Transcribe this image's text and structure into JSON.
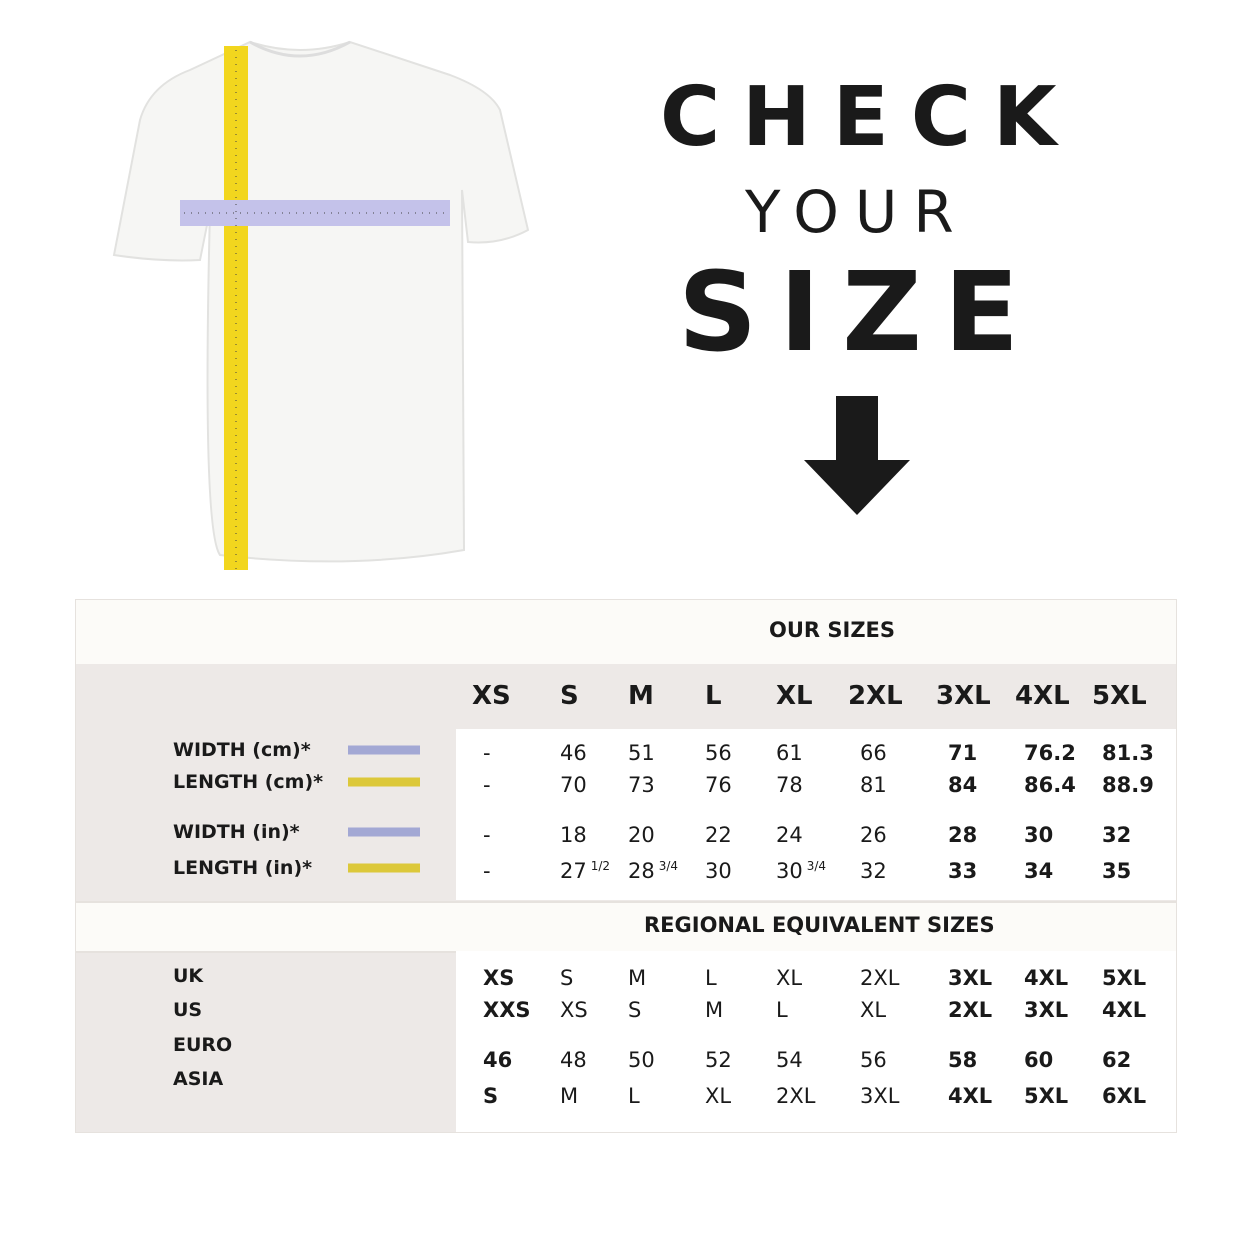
{
  "headline": {
    "line1": "CHECK",
    "line2": "YOUR",
    "line3": "SIZE"
  },
  "icons": {
    "shirt": "tshirt-with-measuring-tapes",
    "arrow": "arrow-down-icon"
  },
  "colors": {
    "width_swatch": "#a3a8d4",
    "length_swatch": "#dcc83a",
    "tape_yellow": "#f2d61e",
    "tape_lavender": "#c4c2ea"
  },
  "our_sizes": {
    "title": "OUR SIZES",
    "sizes": [
      "XS",
      "S",
      "M",
      "L",
      "XL",
      "2XL",
      "3XL",
      "4XL",
      "5XL"
    ],
    "rows": [
      {
        "label": "WIDTH (cm)*",
        "swatch": "width",
        "values": [
          {
            "v": "-"
          },
          {
            "v": "46"
          },
          {
            "v": "51"
          },
          {
            "v": "56"
          },
          {
            "v": "61"
          },
          {
            "v": "66"
          },
          {
            "v": "71"
          },
          {
            "v": "76.2"
          },
          {
            "v": "81.3"
          }
        ]
      },
      {
        "label": "LENGTH (cm)*",
        "swatch": "length",
        "values": [
          {
            "v": "-"
          },
          {
            "v": "70"
          },
          {
            "v": "73"
          },
          {
            "v": "76"
          },
          {
            "v": "78"
          },
          {
            "v": "81"
          },
          {
            "v": "84"
          },
          {
            "v": "86.4"
          },
          {
            "v": "88.9"
          }
        ]
      },
      {
        "label": "WIDTH (in)*",
        "swatch": "width",
        "values": [
          {
            "v": "-"
          },
          {
            "v": "18"
          },
          {
            "v": "20"
          },
          {
            "v": "22"
          },
          {
            "v": "24"
          },
          {
            "v": "26"
          },
          {
            "v": "28"
          },
          {
            "v": "30"
          },
          {
            "v": "32"
          }
        ]
      },
      {
        "label": "LENGTH (in)*",
        "swatch": "length",
        "values": [
          {
            "v": "-"
          },
          {
            "v": "27",
            "frac": "1/2"
          },
          {
            "v": "28",
            "frac": "3/4"
          },
          {
            "v": "30"
          },
          {
            "v": "30",
            "frac": "3/4"
          },
          {
            "v": "32"
          },
          {
            "v": "33"
          },
          {
            "v": "34"
          },
          {
            "v": "35"
          }
        ]
      }
    ]
  },
  "regional": {
    "title": "REGIONAL EQUIVALENT SIZES",
    "rows": [
      {
        "label": "UK",
        "values": [
          "XS",
          "S",
          "M",
          "L",
          "XL",
          "2XL",
          "3XL",
          "4XL",
          "5XL"
        ]
      },
      {
        "label": "US",
        "values": [
          "XXS",
          "XS",
          "S",
          "M",
          "L",
          "XL",
          "2XL",
          "3XL",
          "4XL"
        ]
      },
      {
        "label": "EURO",
        "values": [
          "46",
          "48",
          "50",
          "52",
          "54",
          "56",
          "58",
          "60",
          "62"
        ]
      },
      {
        "label": "ASIA",
        "values": [
          "S",
          "M",
          "L",
          "XL",
          "2XL",
          "3XL",
          "4XL",
          "5XL",
          "6XL"
        ]
      }
    ]
  }
}
